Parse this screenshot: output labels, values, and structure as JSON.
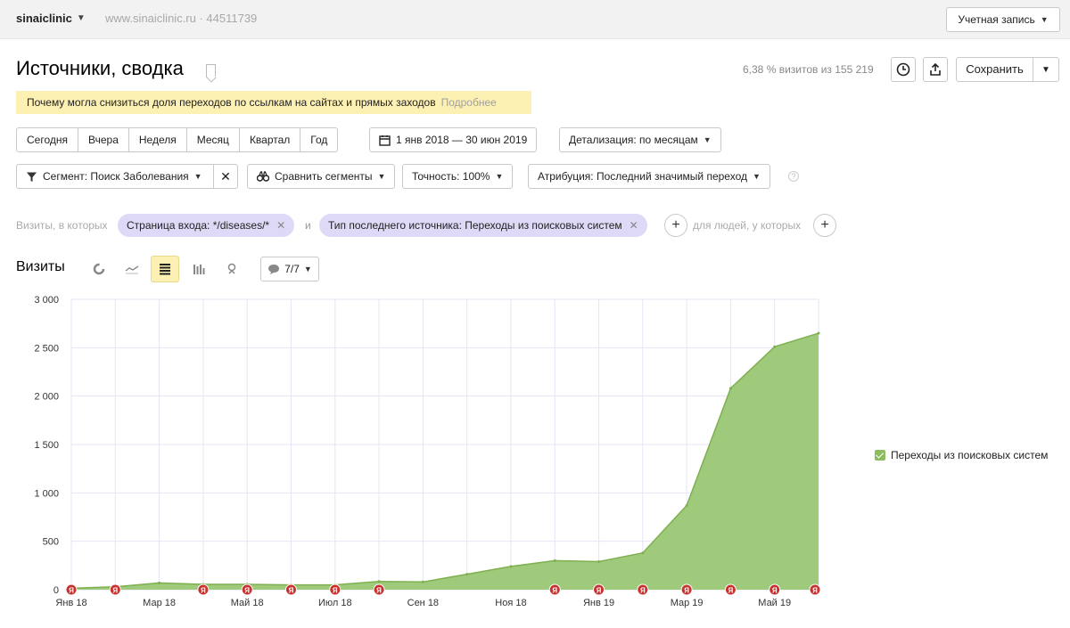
{
  "header": {
    "counter_name": "sinaiclinic",
    "counter_site": "www.sinaiclinic.ru · 44511739",
    "account_label": "Учетная запись"
  },
  "title": "Источники, сводка",
  "visits_share": "6,38 % визитов из 155 219",
  "save_label": "Сохранить",
  "notice": {
    "text": "Почему могла снизиться доля переходов по ссылкам на сайтах и прямых заходов",
    "more": "Подробнее"
  },
  "periods": [
    "Сегодня",
    "Вчера",
    "Неделя",
    "Месяц",
    "Квартал",
    "Год"
  ],
  "date_range": "1 янв 2018 — 30 июн 2019",
  "detail": "Детализация: по месяцам",
  "segment": "Сегмент: Поиск Заболевания",
  "compare": "Сравнить сегменты",
  "accuracy": "Точность: 100%",
  "attribution": "Атрибуция: Последний значимый переход",
  "filters": {
    "label": "Визиты, в которых",
    "chip1": "Страница входа: */diseases/*",
    "and_word": "и",
    "chip2": "Тип последнего источника: Переходы из поисковых систем",
    "people_label": "для людей, у которых"
  },
  "chart_header": {
    "title": "Визиты",
    "series_count": "7/7"
  },
  "colors": {
    "area": "#9fc97b",
    "area_stroke": "#7fb04f",
    "grid": "#e6e6f4",
    "marker": "#c7322f",
    "notice_bg": "#fdf0b3",
    "chip_bg": "#ddd9f6"
  },
  "icons": {
    "filter": "filter-icon",
    "compare": "binoculars-icon",
    "calendar": "calendar-icon",
    "clock": "clock-icon",
    "export": "export-icon"
  },
  "chart_data": {
    "type": "area",
    "title": "Визиты",
    "x": [
      "Янв 18",
      "Фев 18",
      "Мар 18",
      "Апр 18",
      "Май 18",
      "Июн 18",
      "Июл 18",
      "Авг 18",
      "Сен 18",
      "Окт 18",
      "Ноя 18",
      "Дек 18",
      "Янв 19",
      "Фев 19",
      "Мар 19",
      "Апр 19",
      "Май 19",
      "Июн 19"
    ],
    "xtick_labels": [
      "Янв 18",
      "Мар 18",
      "Май 18",
      "Июл 18",
      "Сен 18",
      "Ноя 18",
      "Янв 19",
      "Мар 19",
      "Май 19"
    ],
    "series": [
      {
        "name": "Переходы из поисковых систем",
        "values": [
          15,
          30,
          70,
          55,
          55,
          50,
          50,
          85,
          80,
          160,
          240,
          300,
          290,
          380,
          870,
          2080,
          2510,
          2650
        ]
      }
    ],
    "ylim": [
      0,
      3000
    ],
    "yticks": [
      0,
      500,
      1000,
      1500,
      2000,
      2500,
      3000
    ],
    "ytick_labels": [
      "0",
      "500",
      "1 000",
      "1 500",
      "2 000",
      "2 500",
      "3 000"
    ],
    "grid": true,
    "legend_position": "right",
    "annotation_marker": "Я"
  }
}
